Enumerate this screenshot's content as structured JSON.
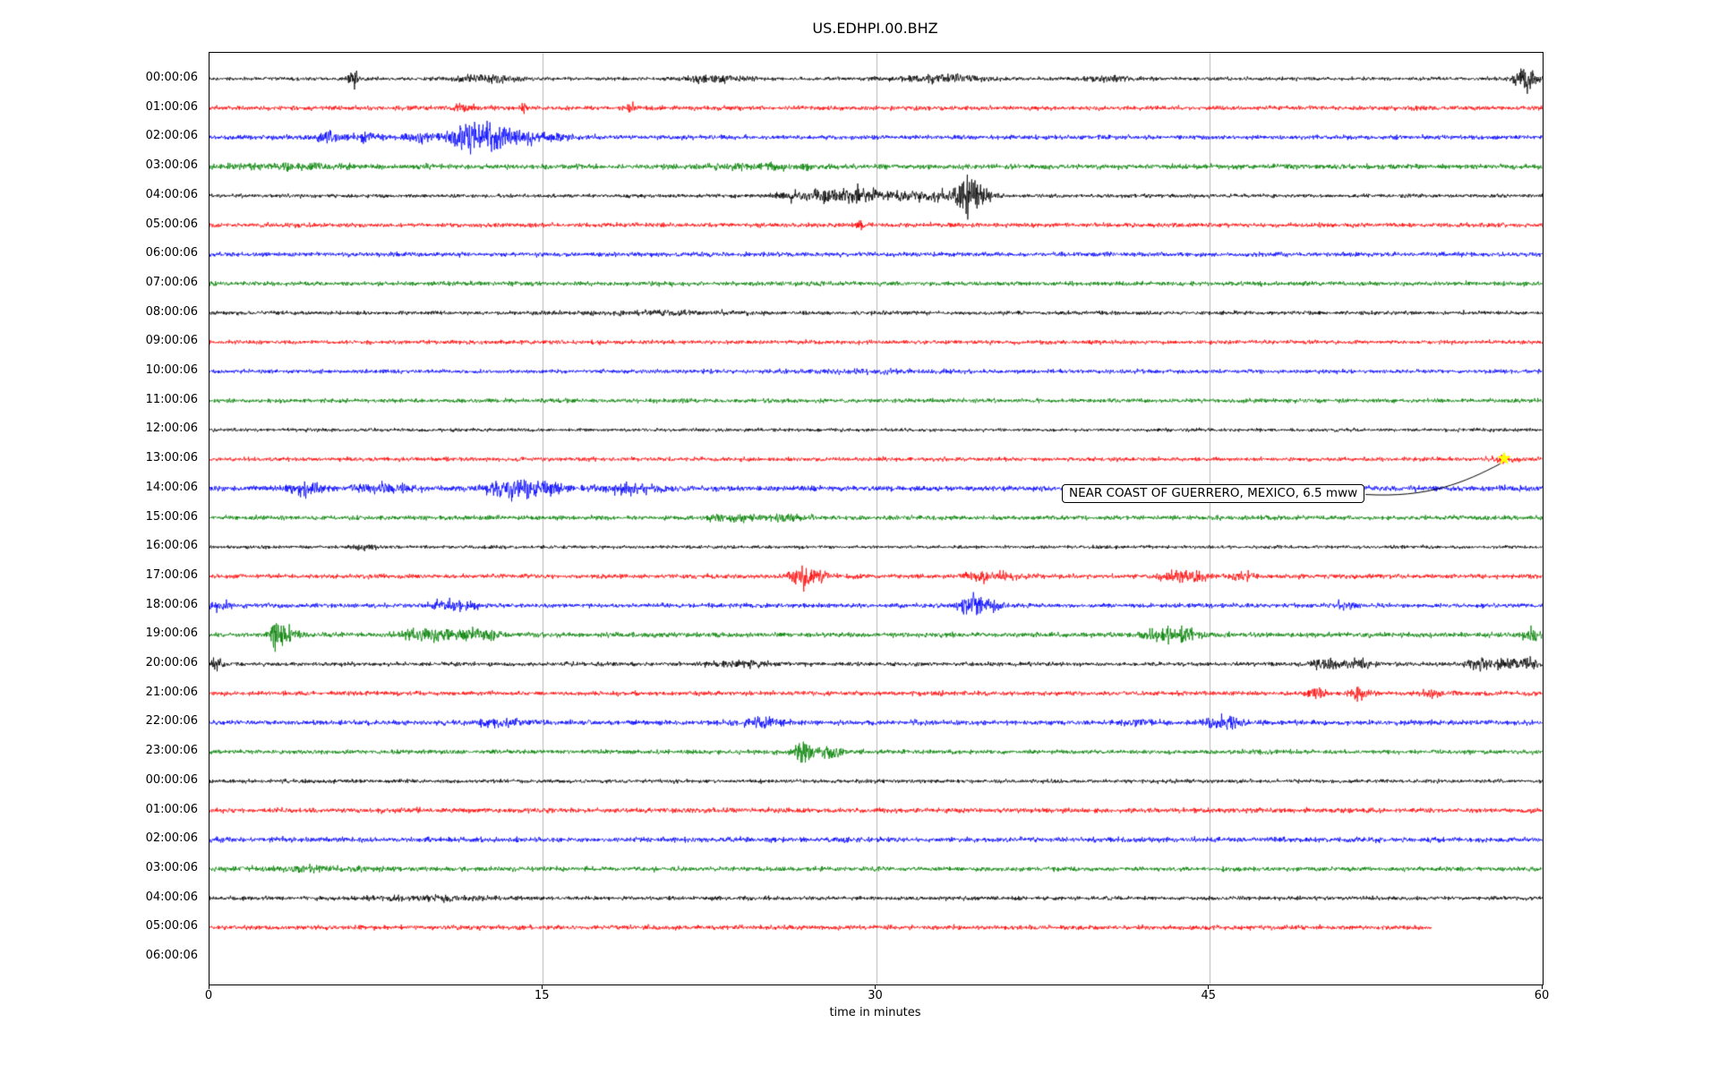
{
  "title": "US.EDHPI.00.BHZ",
  "chart_data": {
    "type": "line",
    "subtype": "seismogram-dayplot",
    "title": "US.EDHPI.00.BHZ",
    "xlabel": "time in minutes",
    "xlim": [
      0,
      60
    ],
    "xticks": [
      0,
      15,
      30,
      45,
      60
    ],
    "grid": "vertical-at-15-30-45",
    "trace_color_cycle": [
      "#000000",
      "#ff0000",
      "#0000ff",
      "#008000"
    ],
    "grid_color": "#b0b0b0",
    "annotation": {
      "text": "NEAR COAST OF GUERRERO, MEXICO, 6.5 mww",
      "row_index": 13,
      "time_minutes": 58.3,
      "marker": "star",
      "marker_color": "#ffff00"
    },
    "rows": [
      {
        "label": "00:00:06",
        "color": "#000000",
        "base": 1.6,
        "end": 60,
        "events": [
          {
            "t": 6.5,
            "amp": 7,
            "w": 0.15
          },
          {
            "t": 12.4,
            "amp": 4,
            "w": 0.9
          },
          {
            "t": 22.8,
            "amp": 3,
            "w": 1.0
          },
          {
            "t": 33.0,
            "amp": 2.5,
            "w": 1.5
          },
          {
            "t": 40.5,
            "amp": 2,
            "w": 0.8
          },
          {
            "t": 59.2,
            "amp": 11,
            "w": 0.35
          }
        ]
      },
      {
        "label": "01:00:06",
        "color": "#ff0000",
        "base": 2.0,
        "end": 60,
        "events": [
          {
            "t": 11.5,
            "amp": 3,
            "w": 0.4
          },
          {
            "t": 14.2,
            "amp": 5,
            "w": 0.12
          },
          {
            "t": 19.0,
            "amp": 4,
            "w": 0.12
          }
        ]
      },
      {
        "label": "02:00:06",
        "color": "#0000ff",
        "base": 2.0,
        "end": 60,
        "events": [
          {
            "t": 5.3,
            "amp": 4,
            "w": 0.3
          },
          {
            "t": 7.0,
            "amp": 4,
            "w": 0.4
          },
          {
            "t": 9.5,
            "amp": 5,
            "w": 0.5
          },
          {
            "t": 11.6,
            "amp": 16,
            "w": 0.5
          },
          {
            "t": 12.7,
            "amp": 9,
            "w": 0.5
          },
          {
            "t": 13.9,
            "amp": 6,
            "w": 0.4
          },
          {
            "t": 15.5,
            "amp": 3,
            "w": 0.8
          }
        ]
      },
      {
        "label": "03:00:06",
        "color": "#008000",
        "base": 2.2,
        "end": 60,
        "events": [
          {
            "t": 3.5,
            "amp": 2.5,
            "w": 1.5
          },
          {
            "t": 25,
            "amp": 1.5,
            "w": 2
          }
        ]
      },
      {
        "label": "04:00:06",
        "color": "#000000",
        "base": 1.7,
        "end": 60,
        "events": [
          {
            "t": 26.3,
            "amp": 4,
            "w": 0.5
          },
          {
            "t": 27.6,
            "amp": 5,
            "w": 0.4
          },
          {
            "t": 29.2,
            "amp": 6,
            "w": 0.5
          },
          {
            "t": 30.5,
            "amp": 3.5,
            "w": 1.2
          },
          {
            "t": 33,
            "amp": 3,
            "w": 1
          },
          {
            "t": 34.1,
            "amp": 15,
            "w": 0.3
          },
          {
            "t": 34.8,
            "amp": 9,
            "w": 0.25
          }
        ]
      },
      {
        "label": "05:00:06",
        "color": "#ff0000",
        "base": 2.0,
        "end": 60,
        "events": [
          {
            "t": 29.3,
            "amp": 5,
            "w": 0.1
          }
        ]
      },
      {
        "label": "06:00:06",
        "color": "#0000ff",
        "base": 2.0,
        "end": 60,
        "events": []
      },
      {
        "label": "07:00:06",
        "color": "#008000",
        "base": 2.0,
        "end": 60,
        "events": []
      },
      {
        "label": "08:00:06",
        "color": "#000000",
        "base": 1.7,
        "end": 60,
        "events": [
          {
            "t": 20,
            "amp": 1,
            "w": 3
          }
        ]
      },
      {
        "label": "09:00:06",
        "color": "#ff0000",
        "base": 1.8,
        "end": 60,
        "events": []
      },
      {
        "label": "10:00:06",
        "color": "#0000ff",
        "base": 1.8,
        "end": 60,
        "events": [
          {
            "t": 30,
            "amp": 1,
            "w": 2
          }
        ]
      },
      {
        "label": "11:00:06",
        "color": "#008000",
        "base": 1.9,
        "end": 60,
        "events": []
      },
      {
        "label": "12:00:06",
        "color": "#000000",
        "base": 1.5,
        "end": 60,
        "events": []
      },
      {
        "label": "13:00:06",
        "color": "#ff0000",
        "base": 1.8,
        "end": 60,
        "events": [
          {
            "t": 58.2,
            "amp": 2.5,
            "w": 0.4
          }
        ]
      },
      {
        "label": "14:00:06",
        "color": "#0000ff",
        "base": 2.4,
        "end": 60,
        "events": [
          {
            "t": 4.4,
            "amp": 6,
            "w": 0.5
          },
          {
            "t": 8,
            "amp": 3,
            "w": 1
          },
          {
            "t": 13.6,
            "amp": 6,
            "w": 0.9
          },
          {
            "t": 15.2,
            "amp": 4,
            "w": 0.6
          },
          {
            "t": 19,
            "amp": 3,
            "w": 1
          }
        ]
      },
      {
        "label": "15:00:06",
        "color": "#008000",
        "base": 2.0,
        "end": 60,
        "events": [
          {
            "t": 23.5,
            "amp": 3,
            "w": 0.8
          },
          {
            "t": 26,
            "amp": 2.5,
            "w": 0.6
          }
        ]
      },
      {
        "label": "16:00:06",
        "color": "#000000",
        "base": 1.5,
        "end": 60,
        "events": [
          {
            "t": 7,
            "amp": 1.5,
            "w": 0.5
          }
        ]
      },
      {
        "label": "17:00:06",
        "color": "#ff0000",
        "base": 2.0,
        "end": 60,
        "events": [
          {
            "t": 26.6,
            "amp": 8,
            "w": 0.35
          },
          {
            "t": 27.4,
            "amp": 4,
            "w": 0.3
          },
          {
            "t": 34.6,
            "amp": 4,
            "w": 0.4
          },
          {
            "t": 36,
            "amp": 3,
            "w": 0.5
          },
          {
            "t": 43.5,
            "amp": 5,
            "w": 0.5
          },
          {
            "t": 44.5,
            "amp": 4,
            "w": 0.4
          },
          {
            "t": 46.5,
            "amp": 3,
            "w": 0.4
          }
        ]
      },
      {
        "label": "18:00:06",
        "color": "#0000ff",
        "base": 2.0,
        "end": 60,
        "events": [
          {
            "t": 0.5,
            "amp": 5,
            "w": 0.25
          },
          {
            "t": 11,
            "amp": 4,
            "w": 0.7
          },
          {
            "t": 34.3,
            "amp": 9,
            "w": 0.35
          },
          {
            "t": 35,
            "amp": 4,
            "w": 0.4
          },
          {
            "t": 51,
            "amp": 3.5,
            "w": 0.3
          }
        ]
      },
      {
        "label": "19:00:06",
        "color": "#008000",
        "base": 2.2,
        "end": 60,
        "events": [
          {
            "t": 3.0,
            "amp": 13,
            "w": 0.2
          },
          {
            "t": 3.6,
            "amp": 6,
            "w": 0.3
          },
          {
            "t": 9.7,
            "amp": 5,
            "w": 0.8
          },
          {
            "t": 12,
            "amp": 5,
            "w": 0.7
          },
          {
            "t": 43,
            "amp": 6,
            "w": 0.6
          },
          {
            "t": 44,
            "amp": 4,
            "w": 0.4
          },
          {
            "t": 59.5,
            "amp": 5,
            "w": 0.3
          }
        ]
      },
      {
        "label": "20:00:06",
        "color": "#000000",
        "base": 1.8,
        "end": 60,
        "events": [
          {
            "t": 0.3,
            "amp": 5,
            "w": 0.2
          },
          {
            "t": 24,
            "amp": 2,
            "w": 1
          },
          {
            "t": 50.3,
            "amp": 4,
            "w": 0.5
          },
          {
            "t": 51.8,
            "amp": 4,
            "w": 0.4
          },
          {
            "t": 57.2,
            "amp": 5,
            "w": 0.4
          },
          {
            "t": 58.6,
            "amp": 6,
            "w": 0.4
          },
          {
            "t": 59.5,
            "amp": 5,
            "w": 0.2
          }
        ]
      },
      {
        "label": "21:00:06",
        "color": "#ff0000",
        "base": 2.0,
        "end": 60,
        "events": [
          {
            "t": 49.8,
            "amp": 6,
            "w": 0.3
          },
          {
            "t": 51.8,
            "amp": 5,
            "w": 0.3
          },
          {
            "t": 55,
            "amp": 2.5,
            "w": 0.5
          }
        ]
      },
      {
        "label": "22:00:06",
        "color": "#0000ff",
        "base": 2.2,
        "end": 60,
        "events": [
          {
            "t": 13,
            "amp": 2.5,
            "w": 1
          },
          {
            "t": 24.8,
            "amp": 4,
            "w": 0.6
          },
          {
            "t": 42,
            "amp": 3,
            "w": 0.5
          },
          {
            "t": 45.3,
            "amp": 5,
            "w": 0.4
          },
          {
            "t": 46.2,
            "amp": 4,
            "w": 0.3
          }
        ]
      },
      {
        "label": "23:00:06",
        "color": "#008000",
        "base": 2.0,
        "end": 60,
        "events": [
          {
            "t": 26.8,
            "amp": 8,
            "w": 0.35
          },
          {
            "t": 28,
            "amp": 5,
            "w": 0.3
          }
        ]
      },
      {
        "label": "00:00:06",
        "color": "#000000",
        "base": 1.7,
        "end": 60,
        "events": []
      },
      {
        "label": "01:00:06",
        "color": "#ff0000",
        "base": 2.2,
        "end": 60,
        "events": []
      },
      {
        "label": "02:00:06",
        "color": "#0000ff",
        "base": 2.2,
        "end": 60,
        "events": []
      },
      {
        "label": "03:00:06",
        "color": "#008000",
        "base": 2.0,
        "end": 60,
        "events": [
          {
            "t": 5,
            "amp": 1.5,
            "w": 2
          }
        ]
      },
      {
        "label": "04:00:06",
        "color": "#000000",
        "base": 1.8,
        "end": 60,
        "events": [
          {
            "t": 10,
            "amp": 1.5,
            "w": 2
          }
        ]
      },
      {
        "label": "05:00:06",
        "color": "#ff0000",
        "base": 2.0,
        "end": 55,
        "events": []
      },
      {
        "label": "06:00:06",
        "color": "#0000ff",
        "base": 0,
        "end": 0,
        "events": []
      }
    ]
  }
}
